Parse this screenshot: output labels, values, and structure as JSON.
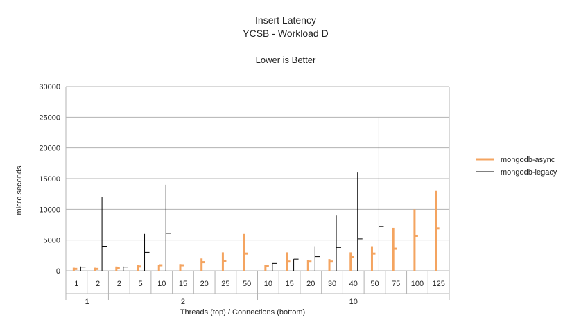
{
  "chart_data": {
    "type": "stock",
    "title": "Insert Latency",
    "subtitle": "YCSB - Workload D",
    "note": "Lower is Better",
    "xlabel": "Threads (top)  / Connections (bottom)",
    "ylabel": "micro seconds",
    "ylim": [
      0,
      30000
    ],
    "yticks": [
      0,
      5000,
      10000,
      15000,
      20000,
      25000,
      30000
    ],
    "grid": true,
    "legend_position": "right",
    "category_groups": [
      {
        "label": "1",
        "threads": [
          "1",
          "2"
        ]
      },
      {
        "label": "2",
        "threads": [
          "2",
          "5",
          "10",
          "15",
          "20",
          "25",
          "50"
        ]
      },
      {
        "label": "10",
        "threads": [
          "10",
          "15",
          "20",
          "30",
          "40",
          "50",
          "75",
          "100",
          "125"
        ]
      }
    ],
    "series": [
      {
        "name": "mongodb-async",
        "color": "#f4a460",
        "style": "thick",
        "values": [
          {
            "low": 0,
            "high": 500,
            "avg": 300
          },
          {
            "low": 0,
            "high": 500,
            "avg": 300
          },
          {
            "low": 0,
            "high": 700,
            "avg": 400
          },
          {
            "low": 0,
            "high": 1000,
            "avg": 700
          },
          {
            "low": 0,
            "high": 1000,
            "avg": 900
          },
          {
            "low": 0,
            "high": 1100,
            "avg": 900
          },
          {
            "low": 0,
            "high": 2000,
            "avg": 1400
          },
          {
            "low": 0,
            "high": 3000,
            "avg": 1600
          },
          {
            "low": 0,
            "high": 6000,
            "avg": 2800
          },
          {
            "low": 0,
            "high": 1000,
            "avg": 800
          },
          {
            "low": 0,
            "high": 3000,
            "avg": 1500
          },
          {
            "low": 0,
            "high": 1800,
            "avg": 1500
          },
          {
            "low": 0,
            "high": 1900,
            "avg": 1500
          },
          {
            "low": 0,
            "high": 3000,
            "avg": 2300
          },
          {
            "low": 0,
            "high": 4000,
            "avg": 2800
          },
          {
            "low": 0,
            "high": 7000,
            "avg": 3600
          },
          {
            "low": 0,
            "high": 10000,
            "avg": 5700
          },
          {
            "low": 0,
            "high": 13000,
            "avg": 6900
          }
        ]
      },
      {
        "name": "mongodb-legacy",
        "color": "#000000",
        "style": "thin",
        "values": [
          {
            "low": 0,
            "high": 700,
            "avg": 600
          },
          {
            "low": 0,
            "high": 12000,
            "avg": 4000
          },
          {
            "low": 0,
            "high": 700,
            "avg": 600
          },
          {
            "low": 0,
            "high": 6000,
            "avg": 3000
          },
          {
            "low": 0,
            "high": 14000,
            "avg": 6100
          },
          null,
          null,
          null,
          null,
          {
            "low": 0,
            "high": 1200,
            "avg": 1200
          },
          {
            "low": 0,
            "high": 1900,
            "avg": 1900
          },
          {
            "low": 0,
            "high": 4000,
            "avg": 2300
          },
          {
            "low": 0,
            "high": 9000,
            "avg": 3800
          },
          {
            "low": 0,
            "high": 16000,
            "avg": 5200
          },
          {
            "low": 0,
            "high": 25000,
            "avg": 7200
          },
          null,
          null,
          null
        ]
      }
    ]
  }
}
